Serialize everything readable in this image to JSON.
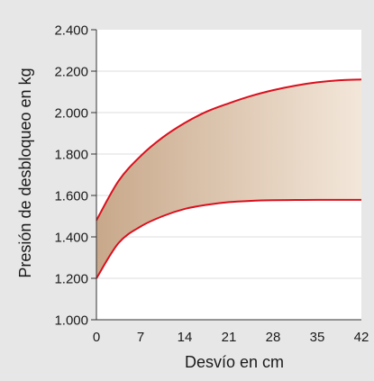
{
  "chart_data": {
    "type": "area",
    "xlabel": "Desvío en cm",
    "ylabel": "Presión de desbloqueo en kg",
    "x_ticks": [
      "0",
      "7",
      "14",
      "21",
      "28",
      "35",
      "42"
    ],
    "y_ticks": [
      "1.000",
      "1.200",
      "1.400",
      "1.600",
      "1.800",
      "2.000",
      "2.200",
      "2.400"
    ],
    "xlim": [
      0,
      42
    ],
    "ylim": [
      1000,
      2400
    ],
    "grid": "horizontal",
    "series": [
      {
        "role": "upper",
        "x": [
          0,
          3.5,
          7,
          10.5,
          14,
          17.5,
          21,
          24.5,
          28,
          31.5,
          35,
          38.5,
          42
        ],
        "values": [
          1480,
          1670,
          1790,
          1880,
          1950,
          2005,
          2045,
          2080,
          2108,
          2130,
          2146,
          2156,
          2160
        ]
      },
      {
        "role": "lower",
        "x": [
          0,
          3.5,
          7,
          10.5,
          14,
          17.5,
          21,
          24.5,
          28,
          31.5,
          35,
          38.5,
          42
        ],
        "values": [
          1200,
          1370,
          1450,
          1500,
          1535,
          1555,
          1568,
          1574,
          1577,
          1578,
          1579,
          1579,
          1579
        ]
      }
    ],
    "colors": {
      "line": "#d9101e",
      "fill_start": "#c8a88a",
      "fill_end": "#f3e7da",
      "plot_bg": "#ffffff",
      "page_bg": "#e7e7e7",
      "grid": "#dcdcdc"
    }
  }
}
